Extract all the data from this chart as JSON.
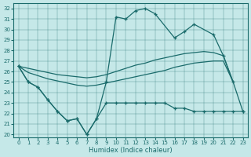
{
  "xlabel": "Humidex (Indice chaleur)",
  "background_color": "#c5e8e8",
  "line_color": "#1a6b6b",
  "xlim": [
    -0.5,
    23.5
  ],
  "ylim": [
    19.7,
    32.5
  ],
  "yticks": [
    20,
    21,
    22,
    23,
    24,
    25,
    26,
    27,
    28,
    29,
    30,
    31,
    32
  ],
  "xticks": [
    0,
    1,
    2,
    3,
    4,
    5,
    6,
    7,
    8,
    9,
    10,
    11,
    12,
    13,
    14,
    15,
    16,
    17,
    18,
    19,
    20,
    21,
    22,
    23
  ],
  "line1_x": [
    0,
    1,
    2,
    3,
    4,
    5,
    6,
    7,
    8,
    9,
    10,
    11,
    12,
    13,
    14,
    16,
    17,
    18,
    20,
    21,
    22,
    23
  ],
  "line1_y": [
    26.5,
    25.0,
    24.5,
    23.3,
    22.2,
    21.3,
    21.5,
    20.0,
    21.5,
    25.0,
    31.2,
    31.0,
    31.8,
    32.0,
    31.5,
    29.2,
    29.8,
    30.5,
    29.5,
    27.5,
    25.0,
    22.2
  ],
  "line2_x": [
    0,
    1,
    2,
    3,
    4,
    5,
    6,
    7,
    8,
    9,
    10,
    11,
    12,
    13,
    14,
    15,
    16,
    17,
    18,
    19,
    20,
    21,
    22,
    23
  ],
  "line2_y": [
    26.5,
    25.0,
    24.5,
    23.3,
    22.2,
    21.3,
    21.5,
    20.0,
    21.5,
    23.0,
    23.0,
    23.0,
    23.0,
    23.0,
    23.0,
    23.0,
    22.5,
    22.5,
    22.2,
    22.2,
    22.2,
    22.2,
    22.2,
    22.2
  ],
  "line3_x": [
    0,
    1,
    2,
    3,
    4,
    5,
    6,
    7,
    8,
    9,
    10,
    11,
    12,
    13,
    14,
    15,
    16,
    17,
    18,
    19,
    20,
    21,
    22
  ],
  "line3_y": [
    26.5,
    26.3,
    26.1,
    25.9,
    25.7,
    25.6,
    25.5,
    25.4,
    25.5,
    25.7,
    26.0,
    26.3,
    26.6,
    26.8,
    27.1,
    27.3,
    27.5,
    27.7,
    27.8,
    27.9,
    27.8,
    27.5,
    25.0
  ],
  "line4_x": [
    0,
    1,
    2,
    3,
    4,
    5,
    6,
    7,
    8,
    9,
    10,
    11,
    12,
    13,
    14,
    15,
    16,
    17,
    18,
    19,
    20,
    21,
    22
  ],
  "line4_y": [
    26.5,
    25.9,
    25.6,
    25.3,
    25.1,
    24.9,
    24.7,
    24.6,
    24.7,
    24.9,
    25.1,
    25.3,
    25.5,
    25.7,
    25.9,
    26.1,
    26.4,
    26.6,
    26.8,
    26.9,
    27.0,
    27.0,
    25.0
  ]
}
